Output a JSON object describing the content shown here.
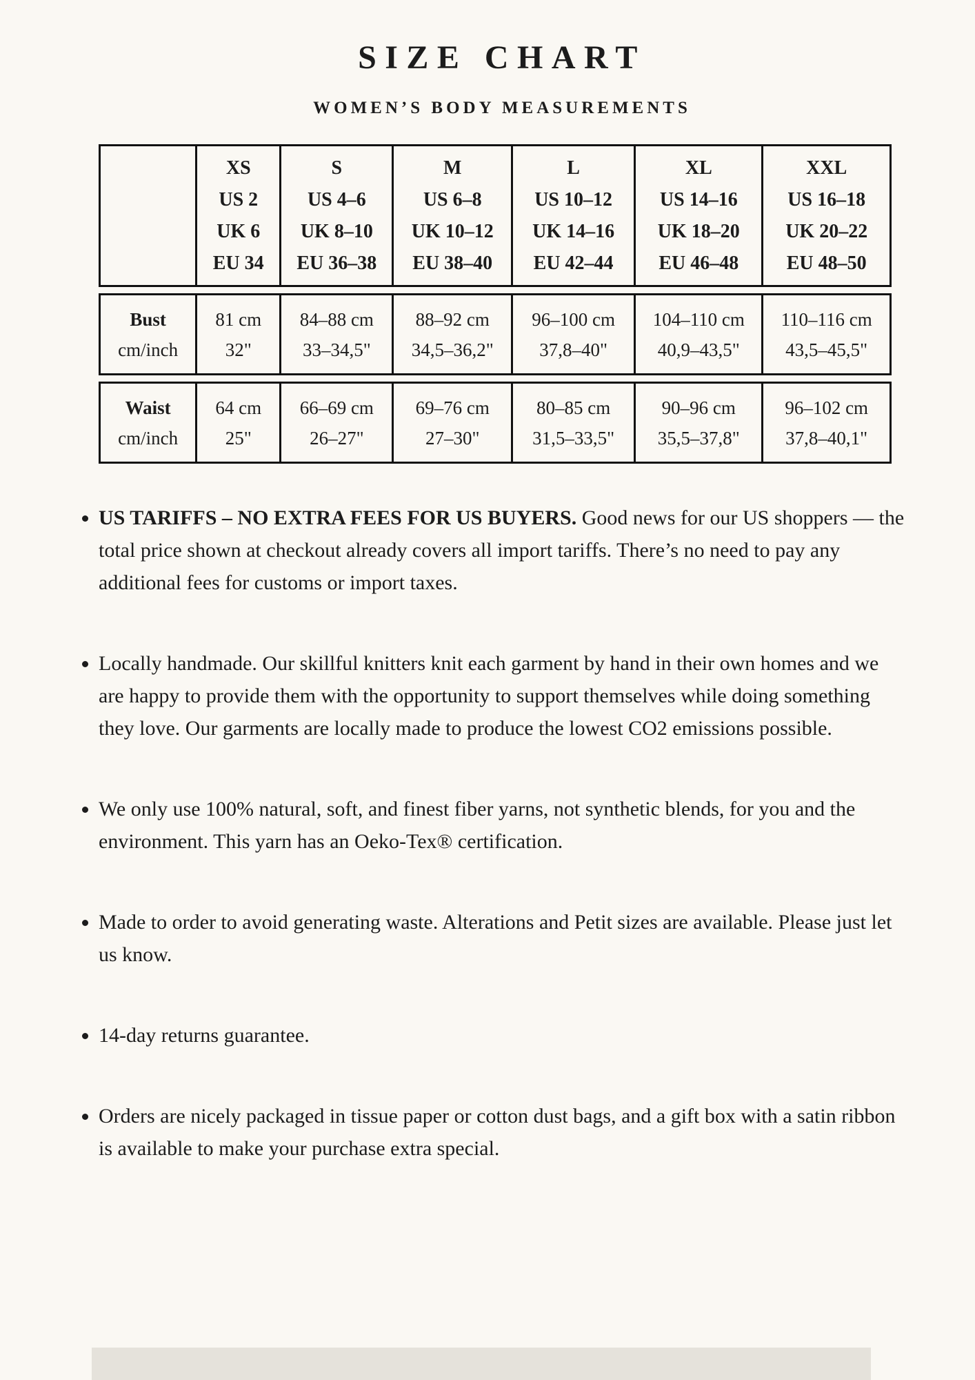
{
  "header": {
    "title": "SIZE CHART",
    "subtitle": "WOMEN’S BODY MEASUREMENTS"
  },
  "size_table": {
    "columns": [
      {
        "name": "XS",
        "us": "US 2",
        "uk": "UK 6",
        "eu": "EU 34"
      },
      {
        "name": "S",
        "us": "US 4–6",
        "uk": "UK 8–10",
        "eu": "EU 36–38"
      },
      {
        "name": "M",
        "us": "US 6–8",
        "uk": "UK 10–12",
        "eu": "EU 38–40"
      },
      {
        "name": "L",
        "us": "US 10–12",
        "uk": "UK 14–16",
        "eu": "EU 42–44"
      },
      {
        "name": "XL",
        "us": "US 14–16",
        "uk": "UK 18–20",
        "eu": "EU 46–48"
      },
      {
        "name": "XXL",
        "us": "US 16–18",
        "uk": "UK 20–22",
        "eu": "EU 48–50"
      }
    ],
    "rows": [
      {
        "label": "Bust",
        "unit": "cm/inch",
        "values": [
          {
            "cm": "81 cm",
            "inch": "32\""
          },
          {
            "cm": "84–88 cm",
            "inch": "33–34,5\""
          },
          {
            "cm": "88–92 cm",
            "inch": "34,5–36,2\""
          },
          {
            "cm": "96–100 cm",
            "inch": "37,8–40\""
          },
          {
            "cm": "104–110 cm",
            "inch": "40,9–43,5\""
          },
          {
            "cm": "110–116 cm",
            "inch": "43,5–45,5\""
          }
        ]
      },
      {
        "label": "Waist",
        "unit": "cm/inch",
        "values": [
          {
            "cm": "64 cm",
            "inch": "25\""
          },
          {
            "cm": "66–69 cm",
            "inch": "26–27\""
          },
          {
            "cm": "69–76 cm",
            "inch": "27–30\""
          },
          {
            "cm": "80–85 cm",
            "inch": "31,5–33,5\""
          },
          {
            "cm": "90–96 cm",
            "inch": "35,5–37,8\""
          },
          {
            "cm": "96–102 cm",
            "inch": "37,8–40,1\""
          }
        ]
      }
    ]
  },
  "bullets": [
    {
      "bold": "US TARIFFS – NO EXTRA FEES FOR US BUYERS.",
      "text": "Good news for our US shoppers — the total price shown at checkout already covers all import tariffs. There’s no need to pay any additional fees for customs or import taxes."
    },
    {
      "bold": "",
      "text": "Locally handmade. Our skillful knitters knit each garment by hand in their own homes and we are happy to provide them with the opportunity to support themselves while doing something they love. Our garments are locally made to produce the lowest CO2 emissions possible."
    },
    {
      "bold": "",
      "text": "We only use 100% natural, soft, and finest fiber yarns, not synthetic blends, for you and the environment. This yarn has an Oeko-Tex® certification."
    },
    {
      "bold": "",
      "text": "Made to order to avoid generating waste. Alterations and Petit sizes are available. Please just let us know."
    },
    {
      "bold": "",
      "text": "14-day returns guarantee."
    },
    {
      "bold": "",
      "text": "Orders are nicely packaged in tissue paper or cotton dust bags, and a gift box with a satin ribbon is available to make your purchase extra special."
    }
  ],
  "colors": {
    "background": "#faf8f3",
    "text": "#1c1c1c",
    "table_border": "#111111",
    "bottom_band": "#e5e2db"
  }
}
